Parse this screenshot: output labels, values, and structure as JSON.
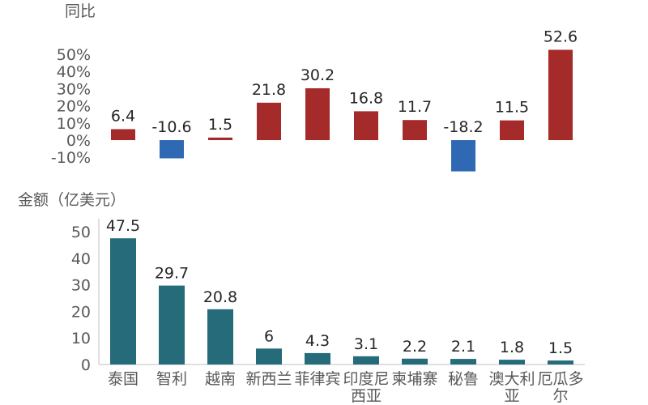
{
  "chart_data": [
    {
      "type": "bar",
      "ylabel": "同比",
      "y_ticks": [
        "50%",
        "40%",
        "30%",
        "20%",
        "10%",
        "0%",
        "-10%"
      ],
      "ylim": [
        -10,
        50
      ],
      "categories": [
        "泰国",
        "智利",
        "越南",
        "新西兰",
        "菲律宾",
        "印度尼西亚",
        "柬埔寨",
        "秘鲁",
        "澳大利亚",
        "厄瓜多尔"
      ],
      "values": [
        6.4,
        -10.6,
        1.5,
        21.8,
        30.2,
        16.8,
        11.7,
        -18.2,
        11.5,
        52.6
      ],
      "value_labels": [
        "6.4",
        "-10.6",
        "1.5",
        "21.8",
        "30.2",
        "16.8",
        "11.7",
        "-18.2",
        "11.5",
        "52.6"
      ],
      "colors": {
        "positive": "#a52a2a",
        "negative": "#2f69b3"
      }
    },
    {
      "type": "bar",
      "ylabel": "金额（亿美元）",
      "y_ticks": [
        "50",
        "40",
        "30",
        "20",
        "10",
        "0"
      ],
      "ylim": [
        0,
        50
      ],
      "categories": [
        "泰国",
        "智利",
        "越南",
        "新西兰",
        "菲律宾",
        "印度尼西亚",
        "柬埔寨",
        "秘鲁",
        "澳大利亚",
        "厄瓜多尔"
      ],
      "category_lines": [
        [
          "泰国"
        ],
        [
          "智利"
        ],
        [
          "越南"
        ],
        [
          "新西兰"
        ],
        [
          "菲律宾"
        ],
        [
          "印度尼",
          "西亚"
        ],
        [
          "柬埔寨"
        ],
        [
          "秘鲁"
        ],
        [
          "澳大利",
          "亚"
        ],
        [
          "厄瓜多",
          "尔"
        ]
      ],
      "values": [
        47.5,
        29.7,
        20.8,
        6,
        4.3,
        3.1,
        2.2,
        2.1,
        1.8,
        1.5
      ],
      "value_labels": [
        "47.5",
        "29.7",
        "20.8",
        "6",
        "4.3",
        "3.1",
        "2.2",
        "2.1",
        "1.8",
        "1.5"
      ],
      "colors": {
        "bar": "#266b7a"
      }
    }
  ]
}
